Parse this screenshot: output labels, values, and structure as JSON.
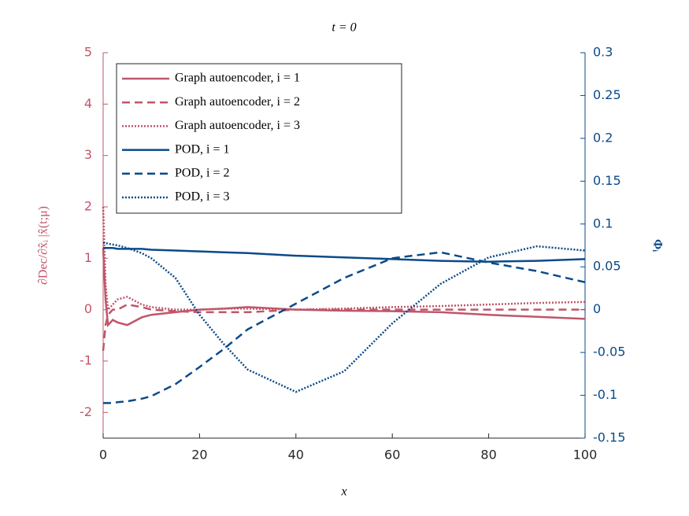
{
  "chart_data": {
    "type": "line",
    "title": "t = 0",
    "x_label": "x",
    "y_label": "∂Dec/∂x̂ᵢ |x̂(t;μ)",
    "y2_label": "Φᵢ",
    "x": [
      0,
      0.5,
      1,
      2,
      3,
      5,
      8,
      10,
      15,
      20,
      25,
      30,
      40,
      50,
      60,
      70,
      80,
      90,
      100
    ],
    "xlim": [
      0,
      100
    ],
    "xticks": [
      0,
      20,
      40,
      60,
      80,
      100
    ],
    "ylim": [
      -2.5,
      5
    ],
    "yticks": [
      -2,
      -1,
      0,
      1,
      2,
      3,
      4,
      5
    ],
    "y2lim": [
      -0.15,
      0.3
    ],
    "y2ticks": [
      -0.15,
      -0.1,
      -0.05,
      0,
      0.05,
      0.1,
      0.15,
      0.2,
      0.25,
      0.3
    ],
    "y_color": "#c0566a",
    "y2_color": "#0b4a8a",
    "legend": "upper left",
    "series": [
      {
        "name": "Graph autoencoder, i = 1",
        "color": "#c0566a",
        "dash": "solid",
        "values": [
          1.2,
          0.2,
          -0.3,
          -0.2,
          -0.25,
          -0.3,
          -0.15,
          -0.1,
          -0.05,
          0.0,
          0.02,
          0.05,
          0.0,
          -0.02,
          -0.03,
          -0.05,
          -0.1,
          -0.14,
          -0.18
        ]
      },
      {
        "name": "Graph autoencoder, i = 2",
        "color": "#c0566a",
        "dash": "dashed",
        "values": [
          -0.8,
          -0.3,
          -0.1,
          0.0,
          0.0,
          0.1,
          0.05,
          0.0,
          -0.03,
          -0.05,
          -0.05,
          -0.05,
          0.0,
          0.0,
          0.0,
          0.0,
          0.0,
          0.0,
          0.0
        ]
      },
      {
        "name": "Graph autoencoder, i = 3",
        "color": "#c0566a",
        "dash": "dotted",
        "values": [
          2.0,
          0.5,
          0.0,
          0.1,
          0.2,
          0.25,
          0.1,
          0.05,
          0.0,
          0.0,
          0.02,
          0.02,
          0.0,
          0.02,
          0.05,
          0.07,
          0.1,
          0.13,
          0.15
        ]
      },
      {
        "name": "POD, i = 1",
        "color": "#0b4a8a",
        "dash": "solid",
        "axis": "y2",
        "values": [
          0.072,
          0.072,
          0.072,
          0.072,
          0.071,
          0.071,
          0.071,
          0.07,
          0.069,
          0.068,
          0.067,
          0.066,
          0.063,
          0.061,
          0.059,
          0.057,
          0.056,
          0.057,
          0.059
        ]
      },
      {
        "name": "POD, i = 2",
        "color": "#0b4a8a",
        "dash": "dashed",
        "axis": "y2",
        "values": [
          -0.109,
          -0.109,
          -0.109,
          -0.109,
          -0.108,
          -0.107,
          -0.104,
          -0.101,
          -0.087,
          -0.067,
          -0.046,
          -0.023,
          0.007,
          0.037,
          0.06,
          0.067,
          0.055,
          0.045,
          0.032
        ]
      },
      {
        "name": "POD, i = 3",
        "color": "#0b4a8a",
        "dash": "dotted",
        "axis": "y2",
        "values": [
          0.078,
          0.078,
          0.077,
          0.076,
          0.075,
          0.072,
          0.066,
          0.06,
          0.037,
          -0.006,
          -0.04,
          -0.07,
          -0.096,
          -0.072,
          -0.016,
          0.03,
          0.061,
          0.074,
          0.069
        ]
      }
    ]
  }
}
